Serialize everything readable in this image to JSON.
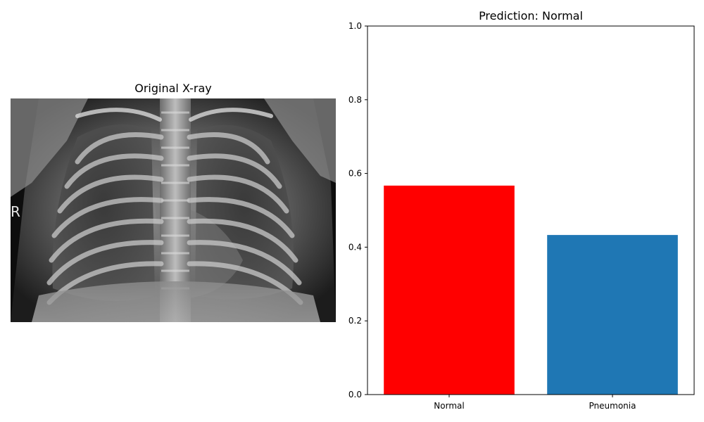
{
  "xray_panel": {
    "title": "Original X-ray",
    "side_marker": "R"
  },
  "chart_data": {
    "type": "bar",
    "title": "Prediction: Normal",
    "categories": [
      "Normal",
      "Pneumonia"
    ],
    "values": [
      0.567,
      0.433
    ],
    "colors": [
      "#ff0000",
      "#1f77b4"
    ],
    "ylim": [
      0,
      1
    ],
    "yticks": [
      0.0,
      0.2,
      0.4,
      0.6,
      0.8,
      1.0
    ],
    "ytick_labels": [
      "0.0",
      "0.2",
      "0.4",
      "0.6",
      "0.8",
      "1.0"
    ],
    "xlabel": "",
    "ylabel": "",
    "grid": false
  }
}
